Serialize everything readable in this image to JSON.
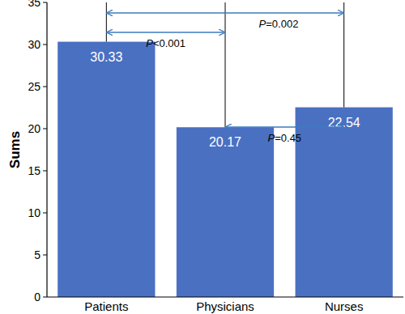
{
  "chart_data": {
    "type": "bar",
    "y_label": "Sums",
    "categories": [
      "Patients",
      "Physicians",
      "Nurses"
    ],
    "values": [
      30.33,
      20.17,
      22.54
    ],
    "color": "#4a70c2",
    "ylim": [
      0,
      35
    ],
    "yticks": [
      0,
      5,
      10,
      15,
      20,
      25,
      30,
      35
    ],
    "grid": false,
    "data_labels": true,
    "annotations": [
      {
        "text": "P=0.002",
        "between": [
          "Patients",
          "Nurses"
        ]
      },
      {
        "text": "P<0.001",
        "between": [
          "Patients",
          "Physicians"
        ]
      },
      {
        "text": "P=0.45",
        "between": [
          "Physicians",
          "Nurses"
        ]
      }
    ]
  }
}
